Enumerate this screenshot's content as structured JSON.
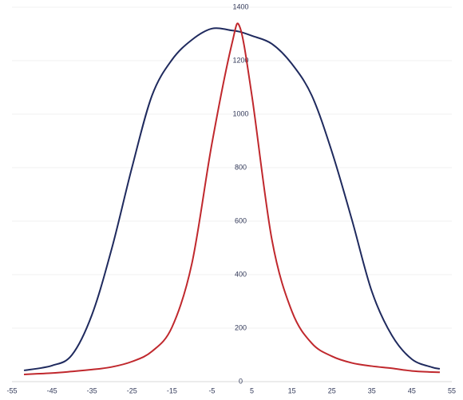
{
  "chart_data": {
    "type": "line",
    "x": [
      -52,
      -45,
      -40,
      -35,
      -30,
      -25,
      -20,
      -15,
      -10,
      -5,
      0,
      2,
      5,
      10,
      15,
      20,
      25,
      30,
      35,
      40,
      45,
      50,
      52
    ],
    "series": [
      {
        "color": "#1f2a5e",
        "values": [
          42,
          60,
          100,
          250,
          500,
          800,
          1069,
          1203,
          1278,
          1320,
          1313,
          1308,
          1293,
          1263,
          1188,
          1069,
          860,
          606,
          337,
          173,
          84,
          54,
          48
        ]
      },
      {
        "color": "#c0282d",
        "values": [
          27,
          32,
          38,
          45,
          55,
          75,
          113,
          203,
          442,
          890,
          1263,
          1325,
          1069,
          531,
          263,
          143,
          95,
          70,
          58,
          50,
          40,
          36,
          35
        ]
      }
    ],
    "xlim": [
      -55,
      55
    ],
    "xticks": [
      -55,
      -45,
      -35,
      -25,
      -15,
      -5,
      5,
      15,
      25,
      35,
      45,
      55
    ],
    "ylim": [
      0,
      1400
    ],
    "yticks": [
      0,
      200,
      400,
      600,
      800,
      1000,
      1200,
      1400
    ],
    "grid": true
  }
}
